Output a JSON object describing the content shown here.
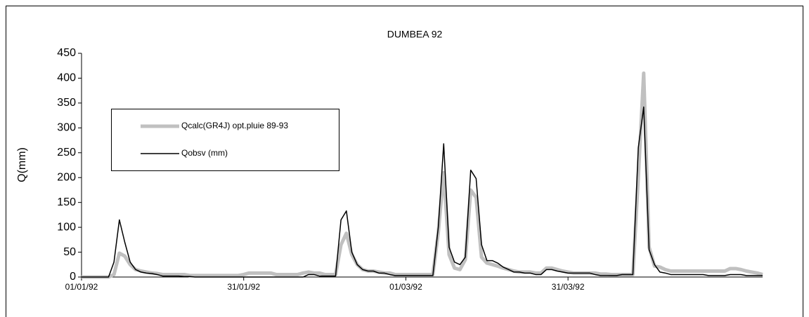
{
  "chart_data": {
    "type": "line",
    "title": "DUMBEA 92",
    "y_label": "Q(mm)",
    "x": [
      0,
      1,
      2,
      3,
      4,
      5,
      6,
      7,
      8,
      9,
      10,
      11,
      12,
      13,
      14,
      15,
      16,
      17,
      18,
      19,
      20,
      21,
      22,
      23,
      24,
      25,
      26,
      27,
      28,
      29,
      30,
      31,
      32,
      33,
      34,
      35,
      36,
      37,
      38,
      39,
      40,
      41,
      42,
      43,
      44,
      45,
      46,
      47,
      48,
      49,
      50,
      51,
      52,
      53,
      54,
      55,
      56,
      57,
      58,
      59,
      60,
      61,
      62,
      63,
      64,
      65,
      66,
      67,
      68,
      69,
      70,
      71,
      72,
      73,
      74,
      75,
      76,
      77,
      78,
      79,
      80,
      81,
      82,
      83,
      84,
      85,
      86,
      87,
      88,
      89,
      90,
      91,
      92,
      93,
      94,
      95,
      96,
      97,
      98,
      99,
      100,
      101,
      102,
      103,
      104,
      105,
      106,
      107,
      108,
      109,
      110,
      111,
      112,
      113,
      114,
      115,
      116,
      117,
      118,
      119,
      120,
      121,
      122,
      123,
      124,
      125,
      126
    ],
    "series": [
      {
        "name": "Qcalc(GR4J) opt.pluie 89-93",
        "color": "#c0c0c0",
        "width": 5,
        "values": [
          0,
          0,
          0,
          0,
          0,
          0,
          5,
          48,
          42,
          25,
          15,
          12,
          10,
          8,
          7,
          5,
          5,
          5,
          5,
          5,
          3,
          3,
          3,
          3,
          3,
          3,
          3,
          3,
          3,
          3,
          5,
          8,
          8,
          8,
          8,
          8,
          5,
          5,
          5,
          5,
          5,
          8,
          10,
          8,
          8,
          5,
          5,
          5,
          65,
          88,
          45,
          25,
          15,
          12,
          12,
          10,
          8,
          8,
          5,
          5,
          5,
          5,
          5,
          5,
          5,
          5,
          90,
          210,
          45,
          18,
          15,
          35,
          175,
          160,
          40,
          28,
          25,
          22,
          18,
          15,
          12,
          10,
          10,
          10,
          8,
          8,
          18,
          18,
          15,
          12,
          10,
          8,
          8,
          8,
          8,
          8,
          6,
          6,
          5,
          5,
          5,
          5,
          5,
          200,
          410,
          60,
          22,
          20,
          15,
          12,
          12,
          12,
          12,
          12,
          12,
          12,
          12,
          12,
          12,
          12,
          17,
          17,
          15,
          12,
          10,
          8,
          5
        ]
      },
      {
        "name": "Qobsv (mm)",
        "color": "#000000",
        "width": 1.5,
        "values": [
          0,
          0,
          0,
          0,
          0,
          0,
          30,
          115,
          70,
          30,
          15,
          10,
          8,
          7,
          5,
          2,
          2,
          2,
          2,
          1,
          1,
          0,
          0,
          0,
          0,
          0,
          0,
          0,
          0,
          0,
          0,
          0,
          0,
          0,
          0,
          0,
          0,
          0,
          0,
          0,
          0,
          0,
          5,
          5,
          2,
          2,
          2,
          2,
          115,
          133,
          50,
          25,
          15,
          12,
          12,
          8,
          8,
          5,
          3,
          3,
          3,
          3,
          3,
          3,
          3,
          3,
          100,
          268,
          60,
          30,
          25,
          40,
          215,
          198,
          65,
          33,
          33,
          28,
          20,
          15,
          10,
          10,
          8,
          8,
          5,
          5,
          15,
          15,
          12,
          10,
          8,
          8,
          8,
          8,
          8,
          5,
          3,
          3,
          3,
          3,
          5,
          5,
          5,
          260,
          342,
          55,
          25,
          10,
          8,
          5,
          5,
          5,
          5,
          5,
          5,
          5,
          3,
          3,
          3,
          3,
          5,
          5,
          5,
          3,
          3,
          3,
          3
        ]
      }
    ],
    "xlim": [
      0,
      126
    ],
    "xticks": [
      {
        "value": 0,
        "label": "01/01/92"
      },
      {
        "value": 30,
        "label": "31/01/92"
      },
      {
        "value": 60,
        "label": "01/03/92"
      },
      {
        "value": 90,
        "label": "31/03/92"
      }
    ],
    "ylim": [
      0,
      450
    ],
    "yticks": [
      0,
      50,
      100,
      150,
      200,
      250,
      300,
      350,
      400,
      450
    ],
    "grid": false
  }
}
